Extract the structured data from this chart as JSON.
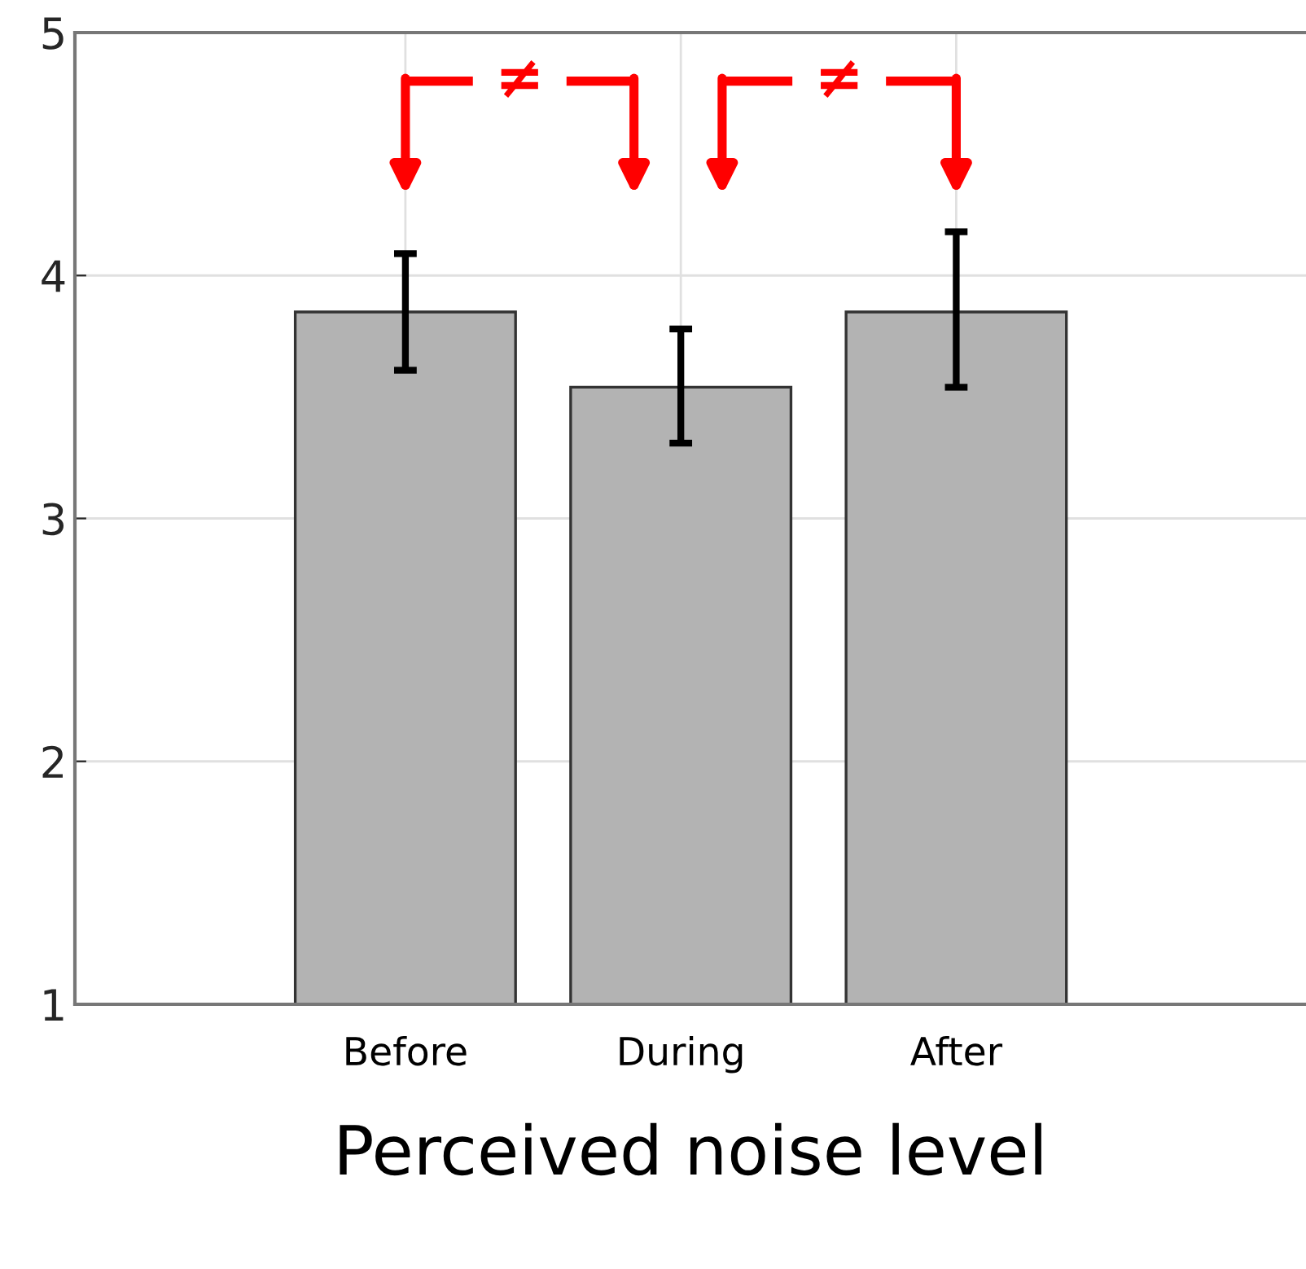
{
  "chart_data": {
    "type": "bar",
    "xlabel": "Perceived noise level",
    "categories": [
      "Before",
      "During",
      "After"
    ],
    "values": [
      3.85,
      3.54,
      3.85
    ],
    "errors": [
      [
        3.61,
        4.09
      ],
      [
        3.31,
        3.78
      ],
      [
        3.54,
        4.18
      ]
    ],
    "color": "#b3b3b3",
    "ylim": [
      1,
      5
    ],
    "yticks": [
      1,
      2,
      3,
      4,
      5
    ],
    "grid": true,
    "annotations": [
      "≠",
      "≠"
    ]
  }
}
